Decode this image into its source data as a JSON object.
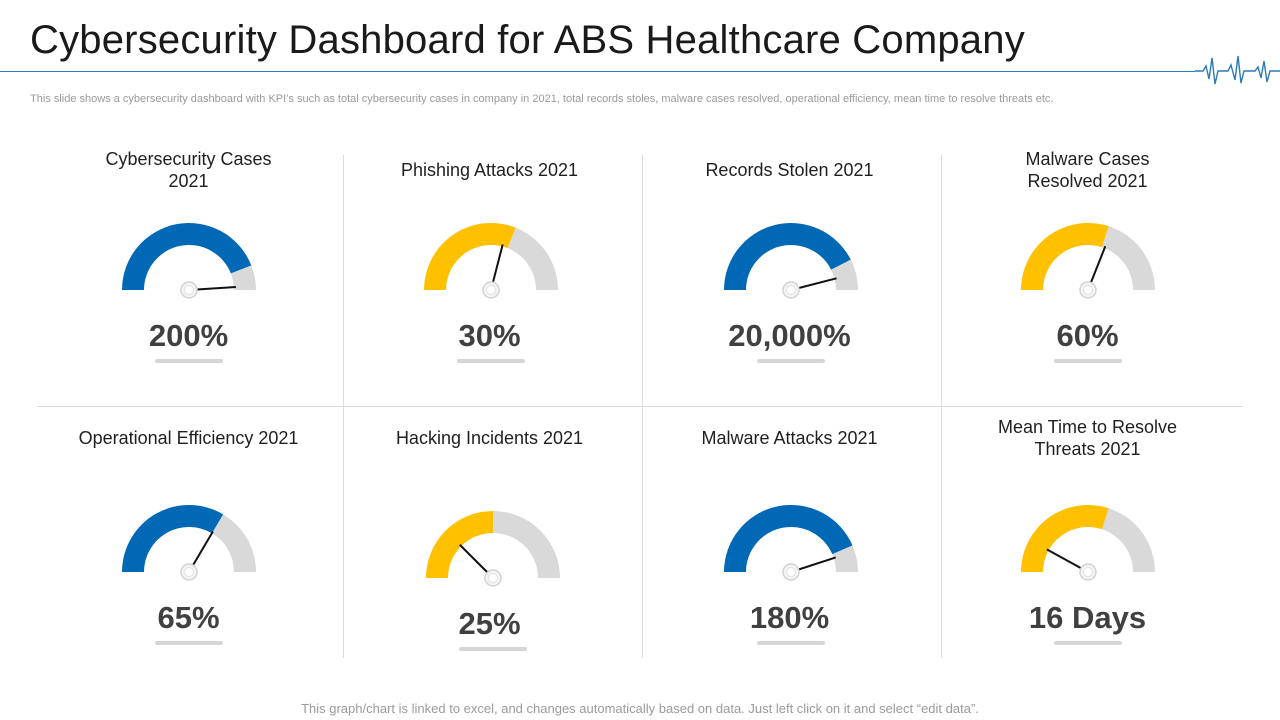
{
  "header": {
    "title": "Cybersecurity Dashboard for ABS Healthcare Company",
    "subtitle": "This slide shows a cybersecurity dashboard with KPI’s such as total cybersecurity cases in company in 2021, total records stoles, malware cases resolved, operational efficiency, mean time to resolve threats etc."
  },
  "colors": {
    "blue": "#0068b5",
    "yellow": "#ffc000",
    "gray": "#d9d9d9",
    "accent_line": "#2b7bb9"
  },
  "kpis": [
    {
      "title": "Cybersecurity Cases\n2021",
      "value": "200%",
      "fill_fraction": 0.88,
      "needle_fraction": 0.98,
      "color": "blue"
    },
    {
      "title": "Phishing Attacks 2021",
      "value": "30%",
      "fill_fraction": 0.62,
      "needle_fraction": 0.58,
      "color": "yellow"
    },
    {
      "title": "Records Stolen 2021",
      "value": "20,000%",
      "fill_fraction": 0.85,
      "needle_fraction": 0.92,
      "color": "blue"
    },
    {
      "title": "Malware Cases\nResolved 2021",
      "value": "60%",
      "fill_fraction": 0.6,
      "needle_fraction": 0.62,
      "color": "yellow"
    },
    {
      "title": "Operational Efficiency 2021",
      "value": "65%",
      "fill_fraction": 0.67,
      "needle_fraction": 0.67,
      "color": "blue"
    },
    {
      "title": "Hacking Incidents 2021",
      "value": "25%",
      "fill_fraction": 0.5,
      "needle_fraction": 0.25,
      "color": "yellow"
    },
    {
      "title": "Malware Attacks 2021",
      "value": "180%",
      "fill_fraction": 0.87,
      "needle_fraction": 0.9,
      "color": "blue"
    },
    {
      "title": "Mean Time to Resolve\nThreats 2021",
      "value": "16 Days",
      "fill_fraction": 0.6,
      "needle_fraction": 0.16,
      "color": "yellow"
    }
  ],
  "footer": {
    "note": "This graph/chart is linked to excel,  and changes automatically based on data. Just left click on it and select “edit data”."
  }
}
